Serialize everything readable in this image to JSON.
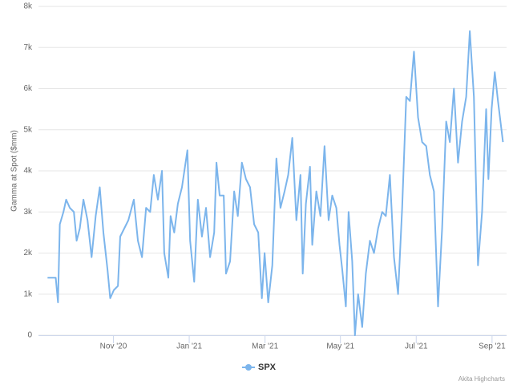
{
  "chart_data": {
    "type": "line",
    "y_axis_label": "Gamma at Spot ($mm)",
    "credits": "Akita Highcharts",
    "x": [
      2020.688,
      2020.697,
      2020.706,
      2020.711,
      2020.715,
      2020.723,
      2020.729,
      2020.737,
      2020.746,
      2020.752,
      2020.759,
      2020.767,
      2020.776,
      2020.785,
      2020.794,
      2020.803,
      2020.811,
      2020.82,
      2020.826,
      2020.834,
      2020.843,
      2020.848,
      2020.857,
      2020.866,
      2020.878,
      2020.887,
      2020.896,
      2020.905,
      2020.914,
      2020.922,
      2020.931,
      2020.94,
      2020.945,
      2020.954,
      2020.959,
      2020.967,
      2020.975,
      2020.984,
      2020.996,
      2021.002,
      2021.011,
      2021.019,
      2021.028,
      2021.037,
      2021.046,
      2021.055,
      2021.06,
      2021.067,
      2021.076,
      2021.081,
      2021.09,
      2021.099,
      2021.107,
      2021.116,
      2021.125,
      2021.134,
      2021.143,
      2021.152,
      2021.16,
      2021.166,
      2021.174,
      2021.183,
      2021.192,
      2021.201,
      2021.21,
      2021.218,
      2021.227,
      2021.236,
      2021.245,
      2021.25,
      2021.257,
      2021.266,
      2021.271,
      2021.28,
      2021.289,
      2021.298,
      2021.307,
      2021.315,
      2021.324,
      2021.331,
      2021.337,
      2021.345,
      2021.351,
      2021.359,
      2021.365,
      2021.372,
      2021.381,
      2021.389,
      2021.398,
      2021.407,
      2021.416,
      2021.425,
      2021.433,
      2021.442,
      2021.451,
      2021.46,
      2021.469,
      2021.478,
      2021.486,
      2021.495,
      2021.504,
      2021.513,
      2021.522,
      2021.53,
      2021.539,
      2021.548,
      2021.557,
      2021.566,
      2021.574,
      2021.583,
      2021.592,
      2021.601,
      2021.61,
      2021.618,
      2021.627,
      2021.636,
      2021.645,
      2021.654,
      2021.659,
      2021.666,
      2021.673,
      2021.68,
      2021.691
    ],
    "series": [
      {
        "name": "SPX",
        "color": "#7cb5ec",
        "values": [
          1400,
          1400,
          1400,
          800,
          2700,
          3000,
          3300,
          3100,
          3000,
          2300,
          2600,
          3300,
          2800,
          1900,
          2900,
          3600,
          2500,
          1600,
          900,
          1100,
          1200,
          2400,
          2600,
          2800,
          3300,
          2300,
          1900,
          3100,
          3000,
          3900,
          3300,
          4000,
          2000,
          1400,
          2900,
          2500,
          3200,
          3600,
          4500,
          2300,
          1300,
          3300,
          2400,
          3100,
          1900,
          2500,
          4200,
          3400,
          3400,
          1500,
          1800,
          3500,
          2900,
          4200,
          3800,
          3600,
          2700,
          2500,
          900,
          2000,
          800,
          1700,
          4300,
          3100,
          3500,
          3900,
          4800,
          2800,
          3900,
          1500,
          3200,
          4100,
          2200,
          3500,
          2900,
          4600,
          2800,
          3400,
          3100,
          2200,
          1600,
          700,
          3000,
          1800,
          0,
          1000,
          200,
          1500,
          2300,
          2000,
          2600,
          3000,
          2900,
          3900,
          1900,
          1000,
          3100,
          5800,
          5700,
          6900,
          5300,
          4700,
          4600,
          3900,
          3500,
          700,
          2600,
          5200,
          4700,
          6000,
          4200,
          5200,
          5800,
          7400,
          5800,
          1700,
          3000,
          5500,
          3800,
          5500,
          6400,
          5700,
          4700
        ]
      }
    ],
    "xlim": [
      2020.668,
      2021.699
    ],
    "xticks": [
      {
        "value": 2020.833,
        "label": "Nov '20"
      },
      {
        "value": 2021.0,
        "label": "Jan '21"
      },
      {
        "value": 2021.167,
        "label": "Mar '21"
      },
      {
        "value": 2021.333,
        "label": "May '21"
      },
      {
        "value": 2021.5,
        "label": "Jul '21"
      },
      {
        "value": 2021.667,
        "label": "Sep '21"
      }
    ],
    "ylim": [
      0,
      8000
    ],
    "yticks": [
      0,
      {
        "value": 1000,
        "label": "1k"
      },
      {
        "value": 2000,
        "label": "2k"
      },
      {
        "value": 3000,
        "label": "3k"
      },
      {
        "value": 4000,
        "label": "4k"
      },
      {
        "value": 5000,
        "label": "5k"
      },
      {
        "value": 6000,
        "label": "6k"
      },
      {
        "value": 7000,
        "label": "7k"
      },
      {
        "value": 8000,
        "label": "8k"
      }
    ],
    "grid": true
  }
}
